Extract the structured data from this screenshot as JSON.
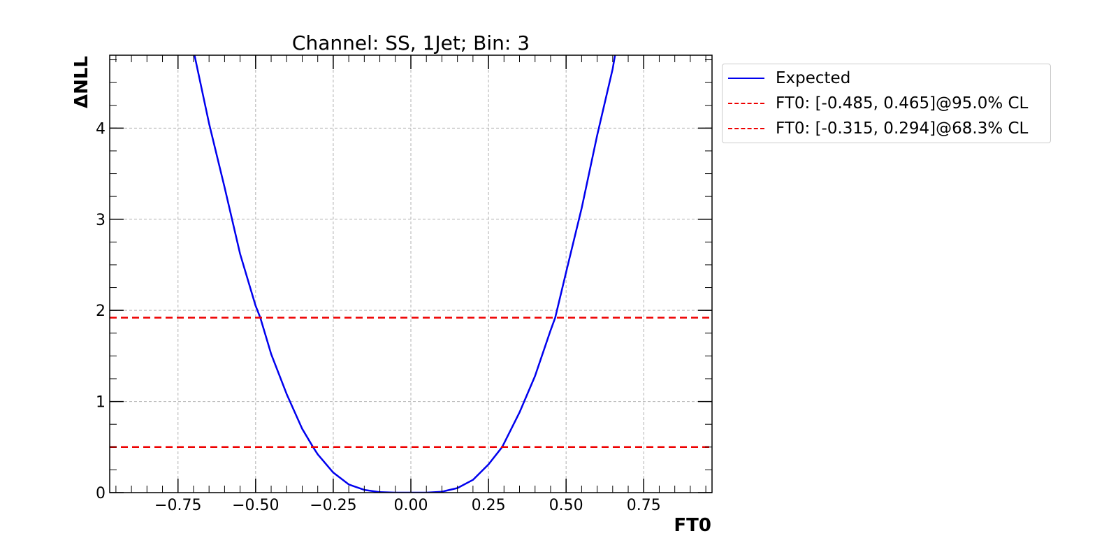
{
  "chart_data": {
    "type": "line",
    "title": "Channel: SS, 1Jet; Bin: 3",
    "xlabel": "FT0",
    "ylabel": "ΔNLL",
    "xlim": [
      -0.97,
      0.97
    ],
    "ylim": [
      0,
      4.8
    ],
    "xticks": [
      -0.75,
      -0.5,
      -0.25,
      0.0,
      0.25,
      0.5,
      0.75
    ],
    "xtick_labels": [
      "−0.75",
      "−0.50",
      "−0.25",
      "0.00",
      "0.25",
      "0.50",
      "0.75"
    ],
    "yticks": [
      0,
      1,
      2,
      3,
      4
    ],
    "ytick_labels": [
      "0",
      "1",
      "2",
      "3",
      "4"
    ],
    "grid": true,
    "legend_position": "outside-top-right",
    "series": [
      {
        "name": "Expected",
        "style": "solid",
        "color": "#0000ee",
        "x": [
          -0.7,
          -0.65,
          -0.6,
          -0.55,
          -0.5,
          -0.485,
          -0.45,
          -0.4,
          -0.35,
          -0.315,
          -0.3,
          -0.25,
          -0.2,
          -0.15,
          -0.1,
          -0.05,
          0.0,
          0.05,
          0.1,
          0.15,
          0.2,
          0.25,
          0.294,
          0.3,
          0.35,
          0.4,
          0.45,
          0.465,
          0.5,
          0.55,
          0.6,
          0.65,
          0.66
        ],
        "y": [
          4.85,
          4.05,
          3.35,
          2.62,
          2.05,
          1.92,
          1.52,
          1.08,
          0.7,
          0.5,
          0.42,
          0.22,
          0.09,
          0.03,
          0.005,
          0.0,
          0.0,
          0.0,
          0.01,
          0.05,
          0.14,
          0.31,
          0.5,
          0.54,
          0.88,
          1.28,
          1.78,
          1.92,
          2.42,
          3.12,
          3.92,
          4.65,
          4.85
        ]
      },
      {
        "name": "FT0: [-0.485, 0.465]@95.0% CL",
        "style": "dashed",
        "color": "#ee0000",
        "y_const": 1.92
      },
      {
        "name": "FT0: [-0.315, 0.294]@68.3% CL",
        "style": "dashed",
        "color": "#ee0000",
        "y_const": 0.5
      }
    ]
  }
}
